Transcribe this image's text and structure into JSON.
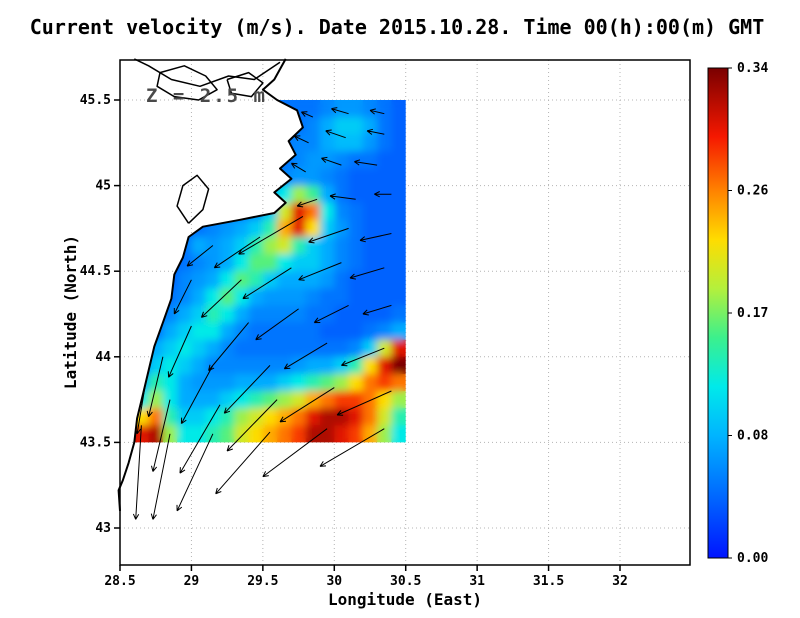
{
  "figure": {
    "background": "#ffffff"
  },
  "chart_data": {
    "type": "heatmap",
    "title": "Current velocity (m/s). Date 2015.10.28. Time 00(h):00(m) GMT",
    "annotation": "Z = 2.5 m",
    "xlabel": "Longitude (East)",
    "ylabel": "Latitude (North)",
    "x_ticks": [
      "28.5",
      "29",
      "29.5",
      "30",
      "30.5",
      "31",
      "31.5",
      "32"
    ],
    "x_tick_values": [
      28.5,
      29,
      29.5,
      30,
      30.5,
      31,
      31.5,
      32
    ],
    "y_ticks": [
      "43",
      "43.5",
      "44",
      "44.5",
      "45",
      "45.5"
    ],
    "y_tick_values": [
      43,
      43.5,
      44,
      44.5,
      45,
      45.5
    ],
    "xlim": [
      28.5,
      32.49
    ],
    "ylim": [
      42.78,
      45.74
    ],
    "grid": true,
    "colors": {
      "axis": "#000000",
      "grid": "#b4b4b4",
      "coastline": "#000000",
      "arrow": "#000000",
      "annotation": "#4a4a4a"
    },
    "colorbar": {
      "vmin": 0,
      "vmax": 0.34,
      "ticks": [
        "0.00",
        "0.08",
        "0.17",
        "0.26",
        "0.34"
      ],
      "units": "m/s",
      "position": "right"
    },
    "colormap": [
      {
        "t": 0.0,
        "color": "#0014ff"
      },
      {
        "t": 0.12,
        "color": "#0064ff"
      },
      {
        "t": 0.25,
        "color": "#00b4ff"
      },
      {
        "t": 0.35,
        "color": "#00eaea"
      },
      {
        "t": 0.45,
        "color": "#3cf08c"
      },
      {
        "t": 0.55,
        "color": "#b4f03c"
      },
      {
        "t": 0.65,
        "color": "#ffdc00"
      },
      {
        "t": 0.75,
        "color": "#ff8200"
      },
      {
        "t": 0.86,
        "color": "#f51800"
      },
      {
        "t": 1.0,
        "color": "#7a0000"
      }
    ],
    "field": {
      "units": "m/s",
      "lon_start": 28.65,
      "lat_start": 45.45,
      "dlon": 0.1,
      "dlat": -0.1,
      "ncols": 19,
      "nrows": 20,
      "values": [
        [
          0.04,
          0.04,
          0.04,
          0.04,
          0.04,
          0.04,
          0.04,
          0.04,
          0.04,
          0.04,
          0.05,
          0.05,
          0.05,
          0.06,
          0.07,
          0.07,
          0.06,
          0.05,
          0.04
        ],
        [
          0.04,
          0.04,
          0.04,
          0.04,
          0.04,
          0.04,
          0.04,
          0.04,
          0.04,
          0.05,
          0.05,
          0.05,
          0.06,
          0.08,
          0.1,
          0.1,
          0.08,
          0.05,
          0.04
        ],
        [
          0.04,
          0.04,
          0.04,
          0.04,
          0.04,
          0.04,
          0.04,
          0.04,
          0.04,
          0.05,
          0.05,
          0.06,
          0.06,
          0.08,
          0.09,
          0.09,
          0.07,
          0.05,
          0.04
        ],
        [
          0.04,
          0.04,
          0.04,
          0.04,
          0.04,
          0.04,
          0.04,
          0.04,
          0.04,
          0.05,
          0.05,
          0.06,
          0.07,
          0.07,
          0.06,
          0.05,
          0.05,
          0.04,
          0.04
        ],
        [
          0.04,
          0.04,
          0.04,
          0.04,
          0.04,
          0.04,
          0.04,
          0.04,
          0.05,
          0.05,
          0.06,
          0.07,
          0.07,
          0.06,
          0.05,
          0.04,
          0.04,
          0.04,
          0.04
        ],
        [
          0.04,
          0.04,
          0.04,
          0.04,
          0.04,
          0.04,
          0.04,
          0.05,
          0.05,
          0.08,
          0.12,
          0.18,
          0.15,
          0.08,
          0.05,
          0.04,
          0.04,
          0.04,
          0.04
        ],
        [
          0.04,
          0.04,
          0.04,
          0.04,
          0.04,
          0.04,
          0.05,
          0.05,
          0.06,
          0.1,
          0.2,
          0.3,
          0.26,
          0.12,
          0.06,
          0.05,
          0.04,
          0.04,
          0.04
        ],
        [
          0.04,
          0.04,
          0.04,
          0.04,
          0.05,
          0.06,
          0.07,
          0.08,
          0.1,
          0.14,
          0.24,
          0.3,
          0.22,
          0.1,
          0.07,
          0.05,
          0.04,
          0.04,
          0.04
        ],
        [
          0.04,
          0.04,
          0.04,
          0.05,
          0.08,
          0.07,
          0.08,
          0.1,
          0.14,
          0.18,
          0.2,
          0.14,
          0.1,
          0.08,
          0.06,
          0.05,
          0.04,
          0.04,
          0.04
        ],
        [
          0.04,
          0.04,
          0.04,
          0.05,
          0.06,
          0.07,
          0.08,
          0.12,
          0.16,
          0.16,
          0.12,
          0.1,
          0.1,
          0.08,
          0.06,
          0.05,
          0.04,
          0.04,
          0.04
        ],
        [
          0.04,
          0.04,
          0.04,
          0.06,
          0.07,
          0.08,
          0.12,
          0.16,
          0.14,
          0.1,
          0.08,
          0.08,
          0.08,
          0.07,
          0.05,
          0.04,
          0.04,
          0.04,
          0.04
        ],
        [
          0.04,
          0.04,
          0.05,
          0.06,
          0.08,
          0.12,
          0.16,
          0.12,
          0.08,
          0.07,
          0.07,
          0.07,
          0.06,
          0.05,
          0.05,
          0.04,
          0.04,
          0.04,
          0.04
        ],
        [
          0.04,
          0.04,
          0.06,
          0.08,
          0.1,
          0.14,
          0.12,
          0.08,
          0.06,
          0.06,
          0.06,
          0.06,
          0.05,
          0.05,
          0.04,
          0.04,
          0.04,
          0.04,
          0.05
        ],
        [
          0.04,
          0.05,
          0.08,
          0.1,
          0.12,
          0.12,
          0.08,
          0.06,
          0.05,
          0.05,
          0.05,
          0.05,
          0.05,
          0.04,
          0.04,
          0.04,
          0.05,
          0.06,
          0.08
        ],
        [
          0.05,
          0.08,
          0.1,
          0.12,
          0.1,
          0.08,
          0.06,
          0.05,
          0.05,
          0.05,
          0.05,
          0.05,
          0.05,
          0.05,
          0.05,
          0.06,
          0.1,
          0.2,
          0.3
        ],
        [
          0.06,
          0.1,
          0.12,
          0.1,
          0.08,
          0.06,
          0.06,
          0.06,
          0.06,
          0.06,
          0.06,
          0.07,
          0.08,
          0.08,
          0.1,
          0.14,
          0.22,
          0.3,
          0.34
        ],
        [
          0.08,
          0.14,
          0.12,
          0.08,
          0.07,
          0.07,
          0.07,
          0.08,
          0.08,
          0.08,
          0.1,
          0.12,
          0.14,
          0.16,
          0.18,
          0.22,
          0.26,
          0.28,
          0.26
        ],
        [
          0.12,
          0.18,
          0.12,
          0.08,
          0.08,
          0.08,
          0.1,
          0.12,
          0.14,
          0.16,
          0.18,
          0.2,
          0.24,
          0.26,
          0.28,
          0.28,
          0.26,
          0.22,
          0.18
        ],
        [
          0.22,
          0.26,
          0.14,
          0.1,
          0.1,
          0.12,
          0.14,
          0.18,
          0.2,
          0.22,
          0.24,
          0.26,
          0.3,
          0.32,
          0.32,
          0.3,
          0.26,
          0.2,
          0.14
        ],
        [
          0.3,
          0.32,
          0.18,
          0.12,
          0.12,
          0.14,
          0.16,
          0.2,
          0.22,
          0.24,
          0.26,
          0.28,
          0.32,
          0.32,
          0.3,
          0.28,
          0.24,
          0.18,
          0.12
        ]
      ]
    },
    "coastline": [
      [
        29.66,
        45.74
      ],
      [
        29.58,
        45.62
      ],
      [
        29.5,
        45.56
      ],
      [
        29.6,
        45.5
      ],
      [
        29.74,
        45.44
      ],
      [
        29.78,
        45.34
      ],
      [
        29.68,
        45.26
      ],
      [
        29.73,
        45.18
      ],
      [
        29.62,
        45.1
      ],
      [
        29.7,
        45.04
      ],
      [
        29.58,
        44.96
      ],
      [
        29.66,
        44.9
      ],
      [
        29.58,
        44.84
      ],
      [
        29.34,
        44.8
      ],
      [
        29.08,
        44.76
      ],
      [
        28.98,
        44.7
      ],
      [
        28.94,
        44.58
      ],
      [
        28.88,
        44.48
      ],
      [
        28.86,
        44.34
      ],
      [
        28.8,
        44.2
      ],
      [
        28.74,
        44.06
      ],
      [
        28.7,
        43.92
      ],
      [
        28.66,
        43.78
      ],
      [
        28.62,
        43.64
      ],
      [
        28.6,
        43.5
      ],
      [
        28.56,
        43.38
      ],
      [
        28.52,
        43.28
      ],
      [
        28.49,
        43.22
      ],
      [
        28.5,
        43.1
      ]
    ],
    "land_closure": [
      [
        27.8,
        43.05
      ],
      [
        27.8,
        45.9
      ],
      [
        29.66,
        45.9
      ]
    ],
    "lakes": [
      [
        [
          28.78,
          45.66
        ],
        [
          28.95,
          45.7
        ],
        [
          29.1,
          45.64
        ],
        [
          29.18,
          45.56
        ],
        [
          29.05,
          45.5
        ],
        [
          28.88,
          45.52
        ],
        [
          28.76,
          45.58
        ],
        [
          28.78,
          45.66
        ]
      ],
      [
        [
          29.25,
          45.62
        ],
        [
          29.4,
          45.66
        ],
        [
          29.5,
          45.6
        ],
        [
          29.42,
          45.52
        ],
        [
          29.28,
          45.54
        ],
        [
          29.25,
          45.62
        ]
      ],
      [
        [
          28.98,
          44.78
        ],
        [
          29.08,
          44.86
        ],
        [
          29.12,
          44.98
        ],
        [
          29.04,
          45.06
        ],
        [
          28.94,
          45.0
        ],
        [
          28.9,
          44.88
        ],
        [
          28.98,
          44.78
        ]
      ],
      [
        [
          29.62,
          45.72
        ],
        [
          29.44,
          45.62
        ],
        [
          29.26,
          45.64
        ],
        [
          29.06,
          45.58
        ],
        [
          28.86,
          45.62
        ],
        [
          28.7,
          45.7
        ],
        [
          28.6,
          45.74
        ]
      ]
    ],
    "arrows": [
      [
        30.35,
        45.42,
        -0.1,
        0.02
      ],
      [
        30.1,
        45.42,
        -0.12,
        0.03
      ],
      [
        29.85,
        45.4,
        -0.08,
        0.03
      ],
      [
        30.35,
        45.3,
        -0.12,
        0.02
      ],
      [
        30.08,
        45.28,
        -0.14,
        0.04
      ],
      [
        29.82,
        45.25,
        -0.1,
        0.04
      ],
      [
        30.3,
        45.12,
        -0.16,
        0.02
      ],
      [
        30.05,
        45.12,
        -0.14,
        0.04
      ],
      [
        29.8,
        45.08,
        -0.1,
        0.05
      ],
      [
        30.4,
        44.95,
        -0.12,
        0.0
      ],
      [
        30.15,
        44.92,
        -0.18,
        0.02
      ],
      [
        29.88,
        44.92,
        -0.14,
        -0.04
      ],
      [
        30.4,
        44.72,
        -0.22,
        -0.04
      ],
      [
        30.1,
        44.75,
        -0.28,
        -0.08
      ],
      [
        29.78,
        44.82,
        -0.45,
        -0.22
      ],
      [
        29.48,
        44.7,
        -0.32,
        -0.18
      ],
      [
        29.15,
        44.65,
        -0.18,
        -0.12
      ],
      [
        30.35,
        44.52,
        -0.24,
        -0.06
      ],
      [
        30.05,
        44.55,
        -0.3,
        -0.1
      ],
      [
        29.7,
        44.52,
        -0.34,
        -0.18
      ],
      [
        29.35,
        44.45,
        -0.28,
        -0.22
      ],
      [
        29.0,
        44.45,
        -0.12,
        -0.2
      ],
      [
        30.4,
        44.3,
        -0.2,
        -0.05
      ],
      [
        30.1,
        44.3,
        -0.24,
        -0.1
      ],
      [
        29.75,
        44.28,
        -0.3,
        -0.18
      ],
      [
        29.4,
        44.2,
        -0.28,
        -0.28
      ],
      [
        29.0,
        44.18,
        -0.16,
        -0.3
      ],
      [
        30.35,
        44.05,
        -0.3,
        -0.1
      ],
      [
        29.95,
        44.08,
        -0.3,
        -0.15
      ],
      [
        29.55,
        43.95,
        -0.32,
        -0.28
      ],
      [
        29.15,
        43.95,
        -0.22,
        -0.34
      ],
      [
        28.8,
        44.0,
        -0.1,
        -0.35
      ],
      [
        30.4,
        43.8,
        -0.38,
        -0.14
      ],
      [
        30.0,
        43.82,
        -0.38,
        -0.2
      ],
      [
        29.6,
        43.75,
        -0.35,
        -0.3
      ],
      [
        29.2,
        43.72,
        -0.28,
        -0.4
      ],
      [
        28.85,
        43.75,
        -0.12,
        -0.42
      ],
      [
        30.35,
        43.58,
        -0.45,
        -0.22
      ],
      [
        29.95,
        43.58,
        -0.45,
        -0.28
      ],
      [
        29.55,
        43.56,
        -0.38,
        -0.36
      ],
      [
        29.15,
        43.55,
        -0.25,
        -0.45
      ],
      [
        28.85,
        43.55,
        -0.12,
        -0.5
      ],
      [
        28.65,
        43.6,
        -0.04,
        -0.55
      ],
      [
        28.68,
        43.85,
        -0.06,
        -0.3
      ]
    ]
  }
}
